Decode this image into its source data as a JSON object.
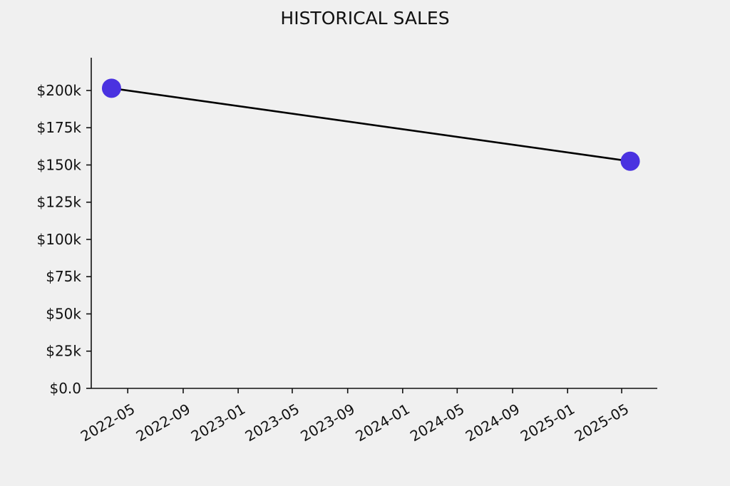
{
  "chart_data": {
    "type": "line",
    "title": "HISTORICAL SALES",
    "xlabel": "",
    "ylabel": "",
    "x": [
      "2022-03-26",
      "2025-05-20"
    ],
    "series": [
      {
        "values": [
          201500,
          152500
        ]
      }
    ],
    "xlim": [
      "2022-02-09",
      "2025-07-19"
    ],
    "ylim": [
      0,
      222000
    ],
    "y_ticks": [
      0,
      25000,
      50000,
      75000,
      100000,
      125000,
      150000,
      175000,
      200000
    ],
    "y_tick_labels": [
      "$0.0",
      "$25k",
      "$50k",
      "$75k",
      "$100k",
      "$125k",
      "$150k",
      "$175k",
      "$200k"
    ],
    "x_ticks": [
      "2022-05-01",
      "2022-09-01",
      "2023-01-01",
      "2023-05-01",
      "2023-09-01",
      "2024-01-01",
      "2024-05-01",
      "2024-09-01",
      "2025-01-01",
      "2025-05-01"
    ],
    "x_tick_labels": [
      "2022-05",
      "2022-09",
      "2023-01",
      "2023-05",
      "2023-09",
      "2024-01",
      "2024-05",
      "2024-09",
      "2025-01",
      "2025-05"
    ],
    "grid": false,
    "colors": {
      "line": "#000000",
      "marker": "#4a32e0",
      "background": "#f0f0f0",
      "axis": "#111111"
    }
  }
}
